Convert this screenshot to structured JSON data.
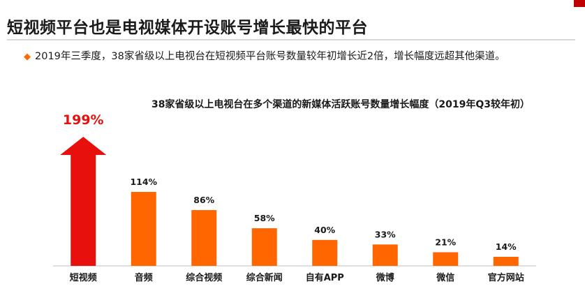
{
  "slide": {
    "title": "短视频平台也是电视媒体开设账号增长最快的平台",
    "bullet": "2019年三季度，38家省级以上电视台在短视频平台账号数量较年初增长近2倍，增长幅度远超其他渠道。",
    "bullet_icon": "diamond-bullet-icon"
  },
  "colors": {
    "bar": "#ff6600",
    "highlight": "#e8100c",
    "highlight_label": "#e8100c",
    "accent_tab": "#c00000"
  },
  "chart_data": {
    "type": "bar",
    "title": "38家省级以上电视台在多个渠道的新媒体活跃账号数量增长幅度（2019年Q3较年初）",
    "categories": [
      "短视频",
      "音频",
      "综合视频",
      "综合新闻",
      "自有APP",
      "微博",
      "微信",
      "官方网站"
    ],
    "values": [
      199,
      114,
      86,
      58,
      40,
      33,
      21,
      14
    ],
    "labels": [
      "199%",
      "114%",
      "86%",
      "58%",
      "40%",
      "33%",
      "21%",
      "14%"
    ],
    "highlight_index": 0,
    "highlight_shape": "arrow",
    "ylim": [
      0,
      199
    ],
    "grid": false,
    "legend": "none"
  }
}
